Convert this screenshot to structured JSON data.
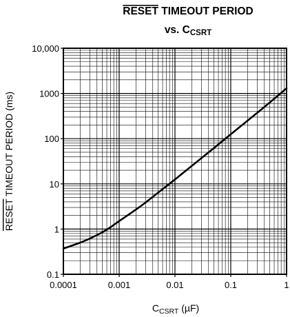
{
  "chart_data": {
    "type": "line",
    "title_line1_overlined": "RESET",
    "title_line1_rest": "TIMEOUT PERIOD",
    "title_line2_prefix": "vs. C",
    "title_line2_sub": "CSRT",
    "xlabel_prefix": "C",
    "xlabel_sub": "CSRT",
    "xlabel_suffix": "(µF)",
    "ylabel_overlined": "RESET",
    "ylabel_rest": "TIMEOUT PERIOD (ms)",
    "x_scale": "log",
    "y_scale": "log",
    "xlim": [
      0.0001,
      1
    ],
    "ylim": [
      0.1,
      10000
    ],
    "x_ticks": [
      {
        "value": 0.0001,
        "label": "0.0001"
      },
      {
        "value": 0.001,
        "label": "0.001"
      },
      {
        "value": 0.01,
        "label": "0.01"
      },
      {
        "value": 0.1,
        "label": "0.1"
      },
      {
        "value": 1,
        "label": "1"
      }
    ],
    "y_ticks": [
      {
        "value": 0.1,
        "label": "0.1"
      },
      {
        "value": 1,
        "label": "1"
      },
      {
        "value": 10,
        "label": "10"
      },
      {
        "value": 100,
        "label": "100"
      },
      {
        "value": 1000,
        "label": "1000"
      },
      {
        "value": 10000,
        "label": "10,000"
      }
    ],
    "grid": true,
    "series": [
      {
        "x": [
          0.0001,
          0.0002,
          0.0003,
          0.0005,
          0.0007,
          0.001,
          0.002,
          0.003,
          0.005,
          0.01,
          0.02,
          0.05,
          0.1,
          0.2,
          0.5,
          1
        ],
        "y": [
          0.37,
          0.5,
          0.62,
          0.85,
          1.1,
          1.5,
          2.7,
          3.9,
          6.4,
          12.5,
          25,
          62,
          125,
          250,
          630,
          1300
        ]
      }
    ],
    "line_color": "#000000"
  }
}
